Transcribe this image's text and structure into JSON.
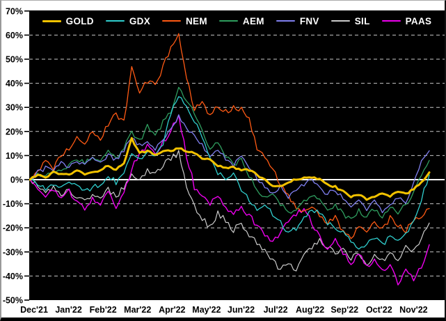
{
  "chart_data": {
    "type": "line",
    "title": "",
    "x_axis": {
      "tick_labels": [
        "Dec'21",
        "Jan'22",
        "Feb'22",
        "Mar'22",
        "Apr'22",
        "May'22",
        "Jun'22",
        "Jul'22",
        "Aug'22",
        "Sep'22",
        "Oct'22",
        "Nov'22"
      ]
    },
    "y_axis": {
      "tick_values": [
        70,
        60,
        50,
        40,
        30,
        20,
        10,
        0,
        -10,
        -20,
        -30,
        -40,
        -50
      ],
      "tick_suffix": "%",
      "range": [
        -50,
        70
      ]
    },
    "grid": {
      "horizontal": "dashed",
      "zero_line": "solid",
      "vertical": false
    },
    "legend": {
      "position": "top-inside"
    },
    "colors": {
      "plot_background": "#000000",
      "page_background": "#ffffff",
      "grid_line": "#c8c8c8",
      "zero_line": "#ffffff",
      "axis_text": "#000000"
    },
    "series": [
      {
        "name": "GOLD",
        "color": "#f2c200",
        "width": 3,
        "noise": 0.4,
        "values": [
          0,
          2,
          1,
          3,
          2,
          2,
          4,
          2,
          3,
          4,
          6,
          4,
          7,
          17,
          11,
          12,
          10,
          12,
          12,
          13,
          12,
          11,
          9,
          8,
          6,
          5,
          5,
          4,
          4,
          2,
          0,
          -3,
          -3,
          -1,
          0,
          1,
          1,
          0,
          -2,
          -3,
          -5,
          -7,
          -6,
          -8,
          -7,
          -6,
          -7,
          -5,
          -6,
          -4,
          -1,
          3
        ]
      },
      {
        "name": "GDX",
        "color": "#30cfcf",
        "width": 1.3,
        "noise": 1.1,
        "values": [
          0,
          -2,
          -4,
          -2,
          -3,
          -1,
          -3,
          -5,
          -3,
          -2,
          2,
          -1,
          3,
          10,
          8,
          12,
          10,
          14,
          28,
          35,
          30,
          24,
          18,
          8,
          3,
          0,
          2,
          -4,
          -8,
          -12,
          -10,
          -14,
          -18,
          -22,
          -20,
          -16,
          -12,
          -14,
          -18,
          -20,
          -22,
          -26,
          -29,
          -26,
          -24,
          -27,
          -24,
          -26,
          -22,
          -18,
          -8,
          2
        ]
      },
      {
        "name": "NEM",
        "color": "#ff5a14",
        "width": 1.3,
        "noise": 1.2,
        "values": [
          0,
          4,
          8,
          5,
          10,
          13,
          17,
          14,
          20,
          17,
          23,
          27,
          24,
          46,
          36,
          41,
          39,
          47,
          54,
          60,
          42,
          29,
          32,
          27,
          31,
          28,
          30,
          29,
          25,
          13,
          10,
          5,
          -2,
          -7,
          -11,
          -14,
          -11,
          -15,
          -18,
          -16,
          -21,
          -24,
          -19,
          -22,
          -17,
          -20,
          -16,
          -19,
          -21,
          -16,
          -15,
          -12
        ]
      },
      {
        "name": "AEM",
        "color": "#2f9e5f",
        "width": 1.3,
        "noise": 1.1,
        "values": [
          0,
          2,
          1,
          3,
          4,
          6,
          9,
          7,
          10,
          8,
          12,
          9,
          13,
          20,
          16,
          22,
          18,
          24,
          28,
          38,
          33,
          28,
          20,
          12,
          16,
          10,
          6,
          8,
          2,
          -4,
          -8,
          -6,
          -10,
          -14,
          -12,
          -9,
          -6,
          -9,
          -13,
          -11,
          -14,
          -17,
          -13,
          -16,
          -12,
          -15,
          -11,
          -14,
          -10,
          -6,
          2,
          8
        ]
      },
      {
        "name": "FNV",
        "color": "#8080f0",
        "width": 1.3,
        "noise": 1.0,
        "values": [
          0,
          3,
          5,
          4,
          7,
          5,
          8,
          6,
          9,
          7,
          10,
          8,
          12,
          18,
          14,
          16,
          13,
          17,
          21,
          26,
          22,
          18,
          14,
          10,
          13,
          9,
          6,
          9,
          5,
          1,
          -3,
          -6,
          -3,
          -7,
          -5,
          -2,
          0,
          -3,
          -6,
          -4,
          -8,
          -11,
          -8,
          -12,
          -9,
          -13,
          -10,
          -7,
          -9,
          -2,
          8,
          12
        ]
      },
      {
        "name": "SIL",
        "color": "#cccccc",
        "width": 1.2,
        "noise": 1.2,
        "values": [
          0,
          -2,
          -5,
          -3,
          -6,
          -4,
          -7,
          -9,
          -6,
          -8,
          -4,
          -7,
          -3,
          3,
          0,
          4,
          2,
          6,
          9,
          11,
          -2,
          -11,
          -16,
          -20,
          -14,
          -17,
          -21,
          -18,
          -23,
          -26,
          -30,
          -34,
          -37,
          -35,
          -37,
          -32,
          -28,
          -25,
          -28,
          -31,
          -28,
          -33,
          -30,
          -35,
          -31,
          -34,
          -30,
          -33,
          -28,
          -30,
          -24,
          -18
        ]
      },
      {
        "name": "PAAS",
        "color": "#ee00ee",
        "width": 1.4,
        "noise": 1.3,
        "values": [
          0,
          -3,
          -6,
          -4,
          -8,
          -5,
          -9,
          -12,
          -8,
          -10,
          -5,
          -12,
          -6,
          5,
          10,
          14,
          10,
          16,
          20,
          27,
          10,
          -3,
          -6,
          -10,
          -6,
          -12,
          -14,
          -11,
          -15,
          -19,
          -23,
          -25,
          -22,
          -18,
          -14,
          -12,
          -18,
          -24,
          -28,
          -25,
          -30,
          -34,
          -31,
          -36,
          -33,
          -38,
          -35,
          -43,
          -38,
          -41,
          -36,
          -27
        ]
      }
    ],
    "draw_order": [
      5,
      6,
      2,
      3,
      4,
      1,
      0
    ]
  }
}
